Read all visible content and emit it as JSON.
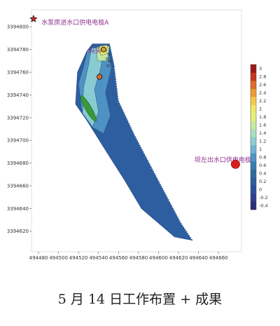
{
  "chart_data": {
    "type": "heatmap",
    "title": "",
    "xlabel": "",
    "ylabel": "",
    "xlim": [
      494473,
      494683
    ],
    "ylim": [
      3394602,
      3394815
    ],
    "grid": false,
    "x_ticks": [
      494480,
      494500,
      494520,
      494540,
      494560,
      494580,
      494600,
      494620,
      494640,
      494660
    ],
    "y_ticks": [
      3394620,
      3394640,
      3394660,
      3394680,
      3394700,
      3394720,
      3394740,
      3394760,
      3394780,
      3394800
    ],
    "colorbar": {
      "placement": "right",
      "ticks": [
        -0.4,
        -0.2,
        0,
        0.2,
        0.4,
        0.6,
        0.8,
        1,
        1.2,
        1.4,
        1.6,
        1.8,
        2,
        2.2,
        2.4,
        2.6,
        2.8,
        3
      ],
      "tick_labels": [
        "-0.4",
        "-0.2",
        "0",
        "0.2",
        "0.4",
        "0.6",
        "0.8",
        "1",
        "1.2",
        "1.4",
        "1.6",
        "1.8",
        "2",
        "2.2",
        "2.4",
        "2.6",
        "2.8",
        "3"
      ],
      "colors": [
        "#2b2f7a",
        "#2f3f8f",
        "#2c4f9c",
        "#2d5e9f",
        "#2f6aa0",
        "#3a7bb0",
        "#4f95c4",
        "#6fb4d6",
        "#8ccfd4",
        "#a8dfc0",
        "#c8e9a0",
        "#e4ee80",
        "#f2e86a",
        "#f5c84a",
        "#f09a35",
        "#e06a2a",
        "#c8361f",
        "#a11818"
      ]
    },
    "domain_polygon": [
      [
        494534,
        3394785
      ],
      [
        494551,
        3394785
      ],
      [
        494556,
        3394764
      ],
      [
        494560,
        3394735
      ],
      [
        494576,
        3394705
      ],
      [
        494598,
        3394668
      ],
      [
        494622,
        3394628
      ],
      [
        494634,
        3394612
      ],
      [
        494616,
        3394615
      ],
      [
        494583,
        3394640
      ],
      [
        494566,
        3394665
      ],
      [
        494548,
        3394690
      ],
      [
        494528,
        3394718
      ],
      [
        494517,
        3394732
      ],
      [
        494519,
        3394760
      ],
      [
        494528,
        3394778
      ]
    ],
    "contours": [
      {
        "level": 0.6,
        "color": "#4f95c4",
        "points": [
          [
            494529,
            3394780
          ],
          [
            494550,
            3394780
          ],
          [
            494553,
            3394764
          ],
          [
            494547,
            3394742
          ],
          [
            494552,
            3394722
          ],
          [
            494545,
            3394706
          ],
          [
            494533,
            3394712
          ],
          [
            494523,
            3394728
          ],
          [
            494520,
            3394750
          ],
          [
            494526,
            3394768
          ]
        ]
      },
      {
        "level": 1.0,
        "color": "#8ccfd4",
        "points": [
          [
            494533,
            3394782
          ],
          [
            494545,
            3394780
          ],
          [
            494542,
            3394763
          ],
          [
            494536,
            3394745
          ],
          [
            494540,
            3394725
          ],
          [
            494534,
            3394712
          ],
          [
            494524,
            3394724
          ],
          [
            494525,
            3394746
          ],
          [
            494530,
            3394766
          ]
        ]
      },
      {
        "level": 1.6,
        "color": "#c8e9a0",
        "points": [
          [
            494538,
            3394782
          ],
          [
            494551,
            3394783
          ],
          [
            494549,
            3394770
          ],
          [
            494539,
            3394770
          ]
        ]
      },
      {
        "level": 2.0,
        "color": "#f2e86a",
        "points": [
          [
            494541,
            3394783
          ],
          [
            494549,
            3394784
          ],
          [
            494548,
            3394776
          ],
          [
            494542,
            3394775
          ]
        ]
      }
    ],
    "features": {
      "green_ellipse": {
        "cx": 494530,
        "cy": 3394728,
        "rx": 3,
        "ry": 13,
        "rotation_deg": -30,
        "color": "#3a9a3a"
      },
      "hot_spots": [
        {
          "x": 494545,
          "y": 3394780,
          "color": "#c8a030"
        },
        {
          "x": 494541,
          "y": 3394756,
          "color": "#e06a2a"
        }
      ],
      "contour_labels": [
        {
          "text": "0.6",
          "x": 494551,
          "y": 3394764
        },
        {
          "text": "0.4",
          "x": 494550,
          "y": 3394770
        }
      ]
    },
    "annotations": [
      {
        "text": "水泵房进水口供电电极A",
        "x": 494483,
        "y": 3394802
      },
      {
        "text": "码头",
        "x": 494530,
        "y": 3394777
      },
      {
        "text": "坝左出水口供电电极B",
        "x": 494636,
        "y": 3394681
      }
    ],
    "electrodes": [
      {
        "name": "A",
        "x": 494475,
        "y": 3394807,
        "color": "#d42020",
        "marker": "star"
      },
      {
        "name": "B",
        "x": 494677,
        "y": 3394679,
        "color": "#d42020",
        "marker": "circle"
      }
    ]
  },
  "caption": "5 月 14 日工作布置 + 成果"
}
